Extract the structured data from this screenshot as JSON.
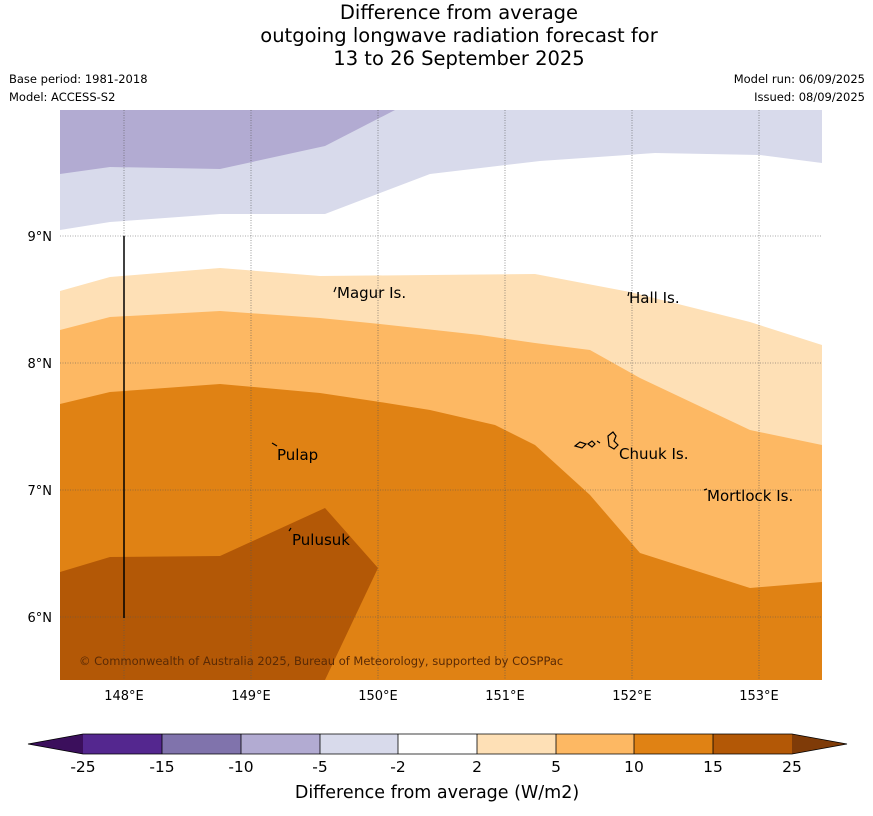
{
  "title_lines": [
    "Difference from average",
    "outgoing longwave radiation forecast for",
    "13 to 26 September 2025"
  ],
  "base_period": "Base period: 1981-2018",
  "model": "Model: ACCESS-S2",
  "model_run": "Model run: 06/09/2025",
  "issued": "Issued: 08/09/2025",
  "map": {
    "lon_labels": [
      "148°E",
      "149°E",
      "150°E",
      "151°E",
      "152°E",
      "153°E"
    ],
    "lat_labels": [
      "9°N",
      "8°N",
      "7°N",
      "6°N"
    ],
    "places": [
      {
        "name": "Magur Is."
      },
      {
        "name": "Hall Is."
      },
      {
        "name": "Pulap"
      },
      {
        "name": "Chuuk Is."
      },
      {
        "name": "Mortlock Is."
      },
      {
        "name": "Pulusuk"
      }
    ],
    "copyright": "© Commonwealth of Australia 2025, Bureau of Meteorology, supported by COSPPac"
  },
  "colorbar": {
    "ticks": [
      "-25",
      "-15",
      "-10",
      "-5",
      "-2",
      "2",
      "5",
      "10",
      "15",
      "25"
    ],
    "label": "Difference from average (W/m2)",
    "colors": {
      "lt_minus25": "#3b0f5c",
      "m25_m15": "#54278f",
      "m15_m10": "#8073ac",
      "m10_m5": "#b2abd2",
      "m5_m2": "#d8daeb",
      "m2_2": "#ffffff",
      "p2_5": "#fee0b6",
      "p5_10": "#fdb863",
      "p10_15": "#e08214",
      "p15_25": "#b35806",
      "gt_25": "#7f3b08"
    }
  }
}
